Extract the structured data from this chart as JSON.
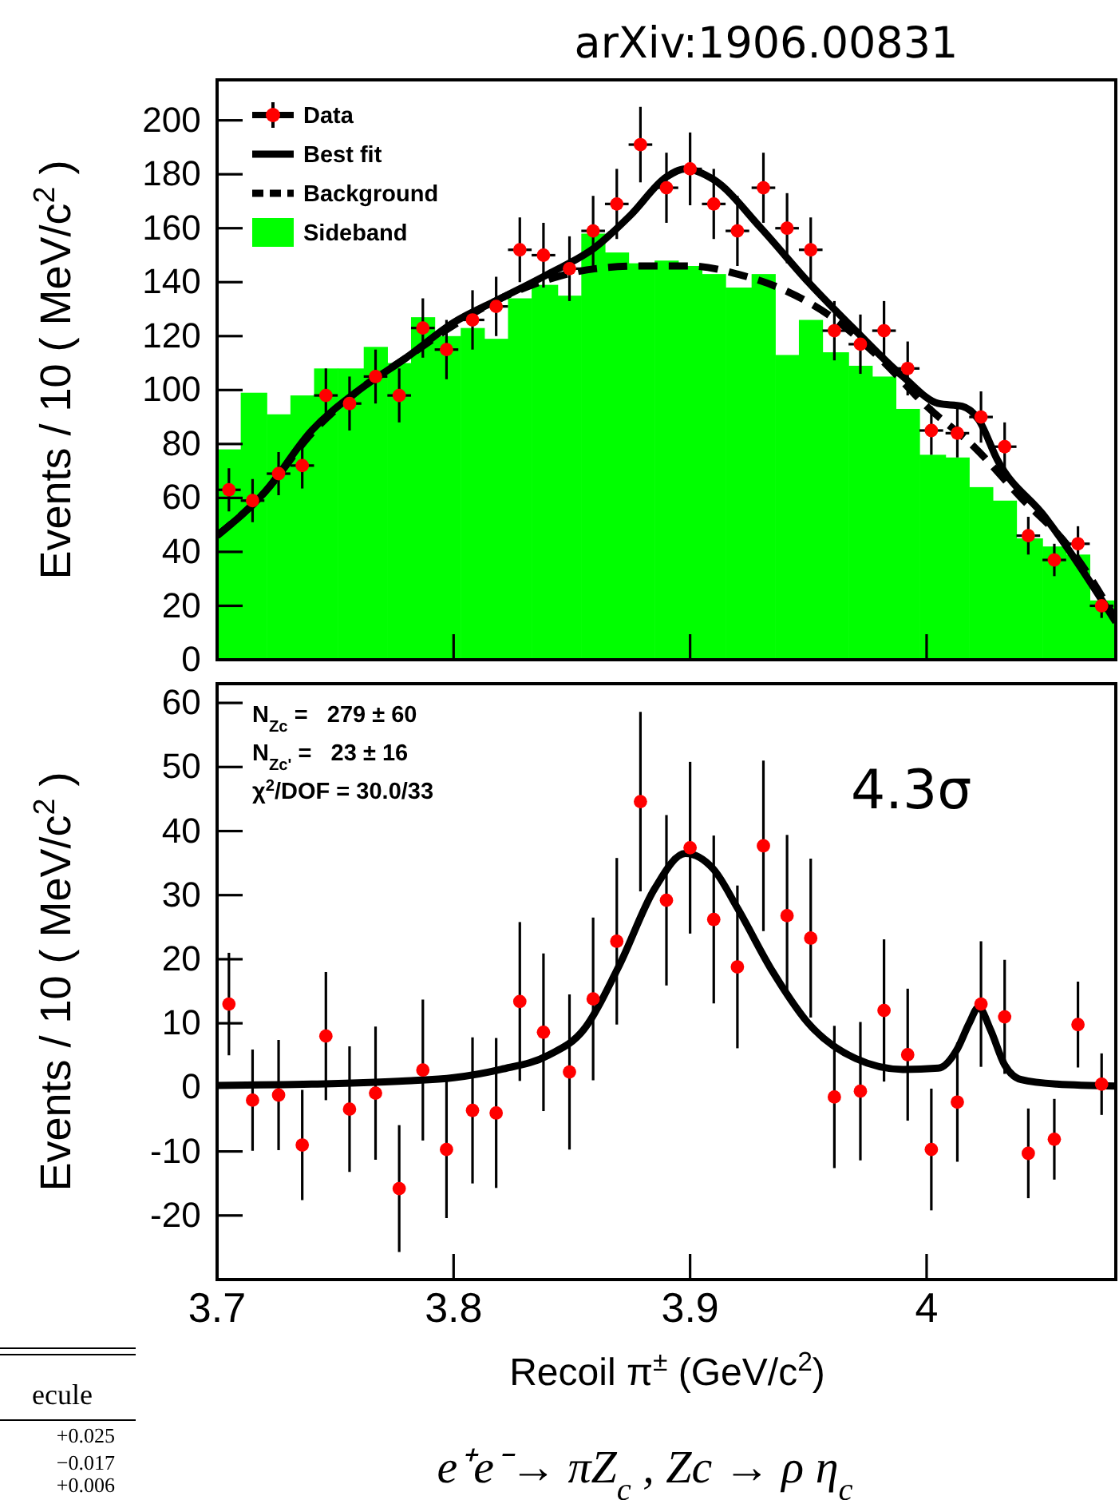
{
  "chart_data": [
    {
      "type": "scatter",
      "title": "arXiv:1906.00831",
      "ylabel": "Events / 10 ( MeV/c$^{2}$ )",
      "xlim": [
        3.7,
        4.08
      ],
      "xticks": [
        3.7,
        3.8,
        3.9,
        4
      ],
      "ylim": [
        0,
        215
      ],
      "yticks": [
        0,
        20,
        40,
        60,
        80,
        100,
        120,
        140,
        160,
        180,
        200
      ],
      "tick_labels": "y",
      "legend": "top left",
      "series": [
        {
          "name": "Sideband",
          "type": "histogram",
          "color": "#00ff00",
          "bins": [
            3.7,
            3.71,
            3.721,
            3.731,
            3.741,
            3.751,
            3.762,
            3.772,
            3.782,
            3.792,
            3.803,
            3.813,
            3.823,
            3.833,
            3.844,
            3.854,
            3.864,
            3.874,
            3.885,
            3.895,
            3.905,
            3.915,
            3.926,
            3.936,
            3.946,
            3.956,
            3.967,
            3.977,
            3.987,
            3.997,
            4.008,
            4.018,
            4.028,
            4.038,
            4.049,
            4.059,
            4.069,
            4.08
          ],
          "values": [
            78,
            99,
            91,
            98,
            108,
            108,
            116,
            110,
            127,
            120,
            123,
            119,
            134,
            139,
            135,
            158,
            151,
            147,
            148,
            146,
            143,
            138,
            143,
            113,
            126,
            114,
            109,
            105,
            93,
            76,
            75,
            64,
            59,
            45,
            42,
            39,
            22
          ]
        },
        {
          "name": "Background",
          "type": "line",
          "line_style": "dashed",
          "color": "#000000",
          "x": [
            3.7,
            3.72,
            3.74,
            3.76,
            3.78,
            3.8,
            3.82,
            3.84,
            3.86,
            3.88,
            3.9,
            3.92,
            3.94,
            3.96,
            3.98,
            4.0,
            4.02,
            4.04,
            4.06,
            4.08
          ],
          "values": [
            46,
            62,
            84,
            100,
            112,
            124,
            134,
            141,
            145,
            146,
            146,
            143,
            137,
            127,
            112,
            94,
            79,
            60,
            42,
            15
          ]
        },
        {
          "name": "Best fit",
          "type": "line",
          "line_style": "solid",
          "color": "#000000",
          "x": [
            3.7,
            3.72,
            3.74,
            3.76,
            3.78,
            3.8,
            3.82,
            3.84,
            3.86,
            3.875,
            3.89,
            3.898,
            3.91,
            3.93,
            3.95,
            3.97,
            3.99,
            4.005,
            4.015,
            4.022,
            4.03,
            4.05,
            4.08
          ],
          "values": [
            46,
            62,
            85,
            100,
            112,
            125,
            134,
            143,
            153,
            165,
            179,
            182,
            178,
            160,
            140,
            122,
            105,
            95,
            94,
            89,
            74,
            53,
            14
          ]
        },
        {
          "name": "Data",
          "marker": "circle",
          "color": "#ff0000",
          "x": [
            3.705,
            3.715,
            3.726,
            3.736,
            3.746,
            3.756,
            3.767,
            3.777,
            3.787,
            3.797,
            3.808,
            3.818,
            3.828,
            3.838,
            3.849,
            3.859,
            3.869,
            3.879,
            3.89,
            3.9,
            3.91,
            3.92,
            3.931,
            3.941,
            3.951,
            3.961,
            3.972,
            3.982,
            3.992,
            4.002,
            4.013,
            4.023,
            4.033,
            4.043,
            4.054,
            4.064,
            4.074
          ],
          "values": [
            63,
            59,
            69,
            72,
            98,
            95,
            105,
            98,
            123,
            115,
            126,
            131,
            152,
            150,
            145,
            159,
            169,
            191,
            175,
            182,
            169,
            159,
            175,
            160,
            152,
            122,
            117,
            122,
            108,
            85,
            84,
            90,
            79,
            46,
            37,
            43,
            20
          ],
          "errors": [
            8,
            8,
            8,
            8.5,
            10,
            10,
            10,
            10,
            11,
            11,
            11,
            11,
            12,
            12,
            12,
            13,
            13,
            14,
            13,
            13.5,
            13,
            13,
            13,
            13,
            12,
            11,
            11,
            11,
            10,
            9,
            9,
            9.5,
            9,
            7,
            6,
            6.5,
            4.5
          ],
          "xerrors": [
            0.005,
            0.005,
            0.005,
            0.005,
            0.005,
            0.005,
            0.005,
            0.005,
            0.005,
            0.005,
            0.005,
            0.005,
            0.005,
            0.005,
            0.005,
            0.005,
            0.005,
            0.005,
            0.005,
            0.005,
            0.005,
            0.005,
            0.005,
            0.005,
            0.005,
            0.005,
            0.005,
            0.005,
            0.005,
            0.005,
            0.005,
            0.005,
            0.005,
            0.005,
            0.005,
            0.005,
            0.005
          ]
        }
      ]
    },
    {
      "type": "scatter",
      "xlabel": "Recoil π$^{±}$ (GeV/c$^{2}$)",
      "ylabel": "Events / 10 ( MeV/c$^{2}$ )",
      "xlim": [
        3.7,
        4.08
      ],
      "xticks": [
        3.7,
        3.8,
        3.9,
        4
      ],
      "ylim": [
        -30,
        63
      ],
      "yticks": [
        -20,
        -10,
        0,
        10,
        20,
        30,
        40,
        50,
        60
      ],
      "annotations": [
        "N$_{Zc}$ =   279 ± 60",
        "N$_{Zc'}$ =   23 ± 16",
        "χ$^{2}$/DOF = 30.0/33",
        "4.3σ",
        "e⁺e⁻→ πZ$_{c}$ , Zc → ρ η$_{c}$",
        "ecule",
        "+0.025",
        "−0.017",
        "+0.006"
      ],
      "series": [
        {
          "type": "line",
          "line_style": "solid",
          "color": "#000000",
          "x": [
            3.7,
            3.74,
            3.78,
            3.8,
            3.82,
            3.84,
            3.855,
            3.87,
            3.885,
            3.898,
            3.91,
            3.92,
            3.935,
            3.95,
            3.97,
            3.99,
            4.005,
            4.013,
            4.018,
            4.022,
            4.027,
            4.033,
            4.04,
            4.055,
            4.08
          ],
          "values": [
            0.3,
            0.5,
            1,
            1.5,
            2.8,
            5,
            9,
            19,
            31,
            36.5,
            34,
            28,
            18,
            10,
            4.5,
            2.8,
            3,
            6,
            10,
            12.5,
            9,
            3.5,
            1.2,
            0.5,
            0.2
          ]
        },
        {
          "marker": "circle",
          "color": "#ff0000",
          "x": [
            3.705,
            3.715,
            3.726,
            3.736,
            3.746,
            3.756,
            3.767,
            3.777,
            3.787,
            3.797,
            3.808,
            3.818,
            3.828,
            3.838,
            3.849,
            3.859,
            3.869,
            3.879,
            3.89,
            3.9,
            3.91,
            3.92,
            3.931,
            3.941,
            3.951,
            3.961,
            3.972,
            3.982,
            3.992,
            4.002,
            4.013,
            4.023,
            4.033,
            4.043,
            4.054,
            4.064,
            4.074
          ],
          "values": [
            13,
            -2,
            -1.2,
            -9,
            8,
            -3.4,
            -0.9,
            -15.8,
            2.7,
            -9.7,
            -3.6,
            -4,
            13.4,
            8.6,
            2.4,
            13.8,
            22.8,
            44.6,
            29.2,
            37.4,
            26.2,
            18.8,
            37.7,
            26.8,
            23.3,
            -1.5,
            -0.6,
            12,
            5.1,
            -9.7,
            -2.3,
            13,
            11,
            -10.3,
            -8.1,
            9.8,
            0.5
          ],
          "errors": [
            8,
            7.9,
            8.6,
            8.6,
            10,
            9.8,
            10.4,
            9.9,
            11,
            10.7,
            11.4,
            11.7,
            12.4,
            12.3,
            12.1,
            12.7,
            13,
            14,
            13.3,
            13.4,
            13.1,
            12.7,
            13.3,
            12.6,
            12.4,
            11.1,
            10.8,
            11.1,
            10.3,
            9.5,
            9.3,
            9.8,
            8.9,
            7,
            6.3,
            6.7,
            4.8
          ]
        }
      ]
    }
  ]
}
